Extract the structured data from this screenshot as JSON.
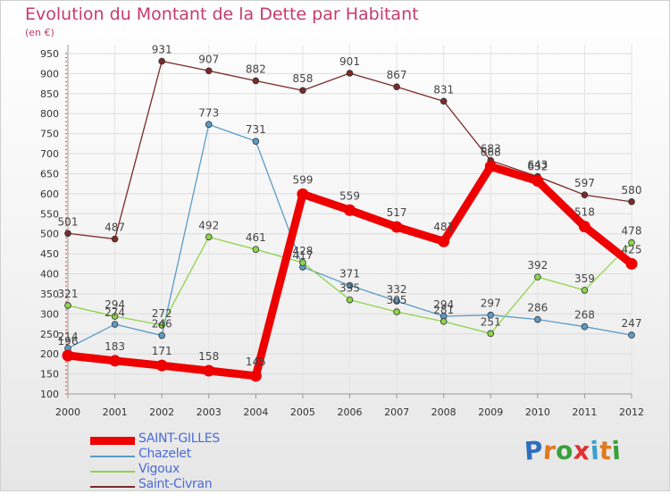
{
  "header": {
    "title": "Evolution du Montant de la Dette par Habitant",
    "subtitle": "(en €)"
  },
  "logo": {
    "text": "Proxiti",
    "letters": [
      "P",
      "r",
      "o",
      "x",
      "i",
      "t",
      "i"
    ],
    "colors": [
      "#2f6fbf",
      "#e07a1f",
      "#3aa03a",
      "#e03030",
      "#3aa0d0",
      "#e07a1f",
      "#3aa03a"
    ]
  },
  "chart_data": {
    "type": "line",
    "title": "Evolution du Montant de la Dette par Habitant",
    "ylabel": "(en €)",
    "xlabel": "",
    "x": [
      "2000",
      "2001",
      "2002",
      "2003",
      "2004",
      "2005",
      "2006",
      "2007",
      "2008",
      "2009",
      "2010",
      "2011",
      "2012"
    ],
    "ylim": [
      100,
      950
    ],
    "yticks": [
      100,
      150,
      200,
      250,
      300,
      350,
      400,
      450,
      500,
      550,
      600,
      650,
      700,
      750,
      800,
      850,
      900,
      950
    ],
    "grid": true,
    "legend_position": "bottom-left",
    "series": [
      {
        "name": "SAINT-GILLES",
        "color": "#ee0000",
        "emphasis": true,
        "values": [
          196,
          183,
          171,
          158,
          145,
          599,
          559,
          517,
          481,
          668,
          632,
          518,
          425
        ],
        "labels": [
          "196",
          "183",
          "171",
          "158",
          "145",
          "599",
          "559",
          "517",
          "481",
          "668",
          "632",
          "518",
          "425"
        ]
      },
      {
        "name": "Chazelet",
        "color": "#5b9bc8",
        "emphasis": false,
        "values": [
          214,
          274,
          246,
          773,
          731,
          417,
          371,
          332,
          294,
          297,
          286,
          268,
          247
        ],
        "labels": [
          "214",
          "274",
          "246",
          "773",
          "731",
          "417",
          "371",
          "332",
          "294",
          "297",
          "286",
          "268",
          "247"
        ]
      },
      {
        "name": "Vigoux",
        "color": "#8ed44a",
        "emphasis": false,
        "values": [
          321,
          294,
          272,
          492,
          461,
          428,
          335,
          305,
          281,
          251,
          392,
          359,
          478
        ],
        "labels": [
          "321",
          "294",
          "272",
          "492",
          "461",
          "428",
          "335",
          "305",
          "281",
          "251",
          "392",
          "359",
          "478"
        ]
      },
      {
        "name": "Saint-Civran",
        "color": "#7a2a2a",
        "emphasis": false,
        "values": [
          501,
          487,
          931,
          907,
          882,
          858,
          901,
          867,
          831,
          683,
          643,
          597,
          580
        ],
        "labels": [
          "501",
          "487",
          "931",
          "907",
          "882",
          "858",
          "901",
          "867",
          "831",
          "683",
          "643",
          "597",
          "580"
        ]
      }
    ]
  }
}
